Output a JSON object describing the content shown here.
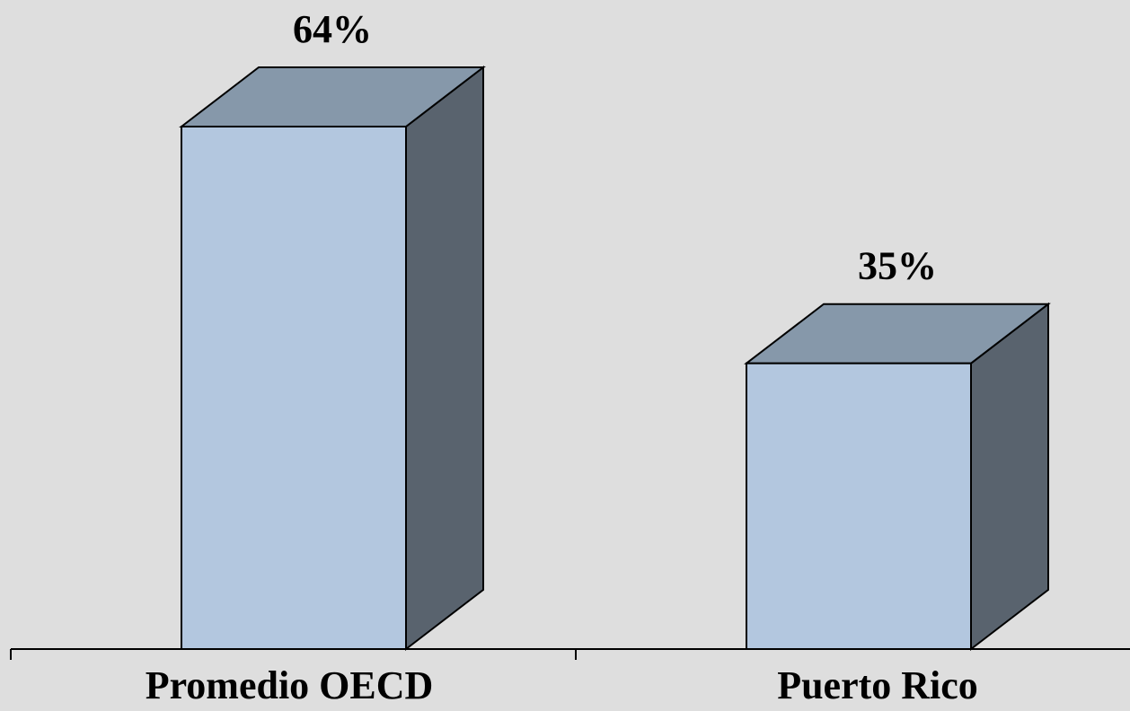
{
  "chart_data": {
    "type": "bar",
    "style": "3d",
    "categories": [
      "Promedio OECD",
      "Puerto Rico"
    ],
    "values": [
      64,
      35
    ],
    "data_labels": [
      "64%",
      "35%"
    ],
    "title": "",
    "xlabel": "",
    "ylabel": "",
    "ylim": [
      0,
      70
    ],
    "grid": false,
    "legend": "none",
    "colors": {
      "background": "#dedede",
      "bar_front": "#b3c7df",
      "bar_top": "#8698aa",
      "bar_side": "#59636e",
      "outline": "#000000",
      "axis": "#000000"
    }
  }
}
